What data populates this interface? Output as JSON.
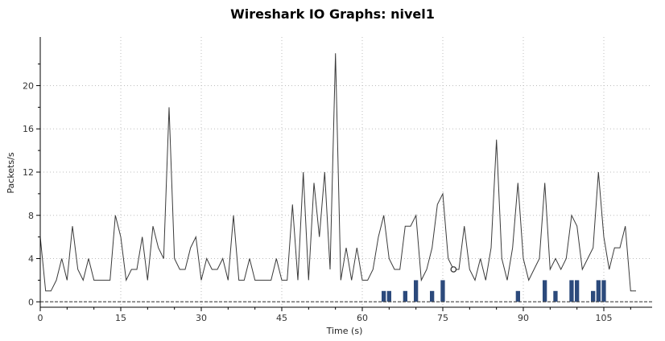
{
  "chart_data": {
    "type": "line",
    "title": "Wireshark IO Graphs: nivel1",
    "xlabel": "Time (s)",
    "ylabel": "Packets/s",
    "xlim": [
      0,
      114
    ],
    "ylim": [
      -0.5,
      24.5
    ],
    "x_ticks": [
      0,
      15,
      30,
      45,
      60,
      75,
      90,
      105
    ],
    "y_ticks": [
      0,
      4,
      8,
      12,
      16,
      20
    ],
    "grid": true,
    "series": [
      {
        "type": "line",
        "color": "#3a3a3a",
        "x": [
          0,
          1,
          2,
          3,
          4,
          5,
          6,
          7,
          8,
          9,
          10,
          11,
          12,
          13,
          14,
          15,
          16,
          17,
          18,
          19,
          20,
          21,
          22,
          23,
          24,
          25,
          26,
          27,
          28,
          29,
          30,
          31,
          32,
          33,
          34,
          35,
          36,
          37,
          38,
          39,
          40,
          41,
          42,
          43,
          44,
          45,
          46,
          47,
          48,
          49,
          50,
          51,
          52,
          53,
          54,
          55,
          56,
          57,
          58,
          59,
          60,
          61,
          62,
          63,
          64,
          65,
          66,
          67,
          68,
          69,
          70,
          71,
          72,
          73,
          74,
          75,
          76,
          77,
          78,
          79,
          80,
          81,
          82,
          83,
          84,
          85,
          86,
          87,
          88,
          89,
          90,
          91,
          92,
          93,
          94,
          95,
          96,
          97,
          98,
          99,
          100,
          101,
          102,
          103,
          104,
          105,
          106,
          107,
          108,
          109,
          110,
          111
        ],
        "values": [
          6,
          1,
          1,
          2,
          4,
          2,
          7,
          3,
          2,
          4,
          2,
          2,
          2,
          2,
          8,
          6,
          2,
          3,
          3,
          6,
          2,
          7,
          5,
          4,
          18,
          4,
          3,
          3,
          5,
          6,
          2,
          4,
          3,
          3,
          4,
          2,
          8,
          2,
          2,
          4,
          2,
          2,
          2,
          2,
          4,
          2,
          2,
          9,
          2,
          12,
          2,
          11,
          6,
          12,
          3,
          23,
          2,
          5,
          2,
          5,
          2,
          2,
          3,
          6,
          8,
          4,
          3,
          3,
          7,
          7,
          8,
          2,
          3,
          5,
          9,
          10,
          4,
          3,
          3,
          7,
          3,
          2,
          4,
          2,
          5,
          15,
          4,
          2,
          5,
          11,
          4,
          2,
          3,
          4,
          11,
          3,
          4,
          3,
          4,
          8,
          7,
          3,
          4,
          5,
          12,
          6,
          3,
          5,
          5,
          7,
          1,
          1
        ]
      },
      {
        "type": "bar",
        "color": "#2c4a7c",
        "x": [
          64,
          65,
          68,
          70,
          73,
          75,
          89,
          94,
          96,
          99,
          100,
          103,
          104,
          105
        ],
        "values": [
          1,
          1,
          1,
          2,
          1,
          2,
          1,
          2,
          1,
          2,
          2,
          1,
          2,
          2
        ]
      },
      {
        "type": "baseline",
        "color": "#555555",
        "x_range": [
          0,
          114
        ],
        "value": 0
      }
    ],
    "marker": {
      "x": 77,
      "y": 3
    }
  }
}
